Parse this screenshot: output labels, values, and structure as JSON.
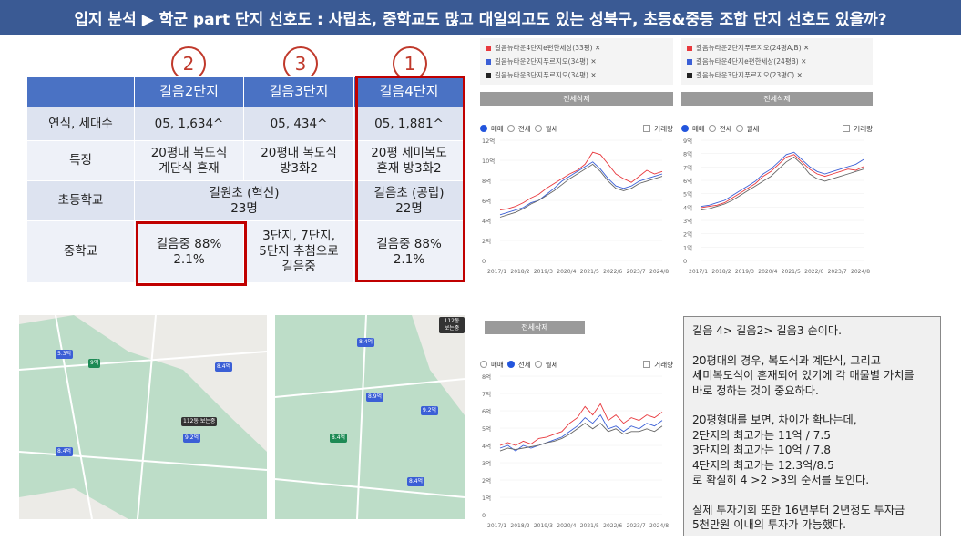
{
  "title": "입지 분석 ▶ 학군 part 단지 선호도 : 사립초, 중학교도 많고 대일외고도 있는 성북구, 초등&중등 조합 단지 선호도 있을까?",
  "markers": [
    "2",
    "3",
    "1"
  ],
  "table": {
    "headers": [
      "",
      "길음2단지",
      "길음3단지",
      "길음4단지"
    ],
    "rows": [
      {
        "label": "연식, 세대수",
        "c1": "05, 1,634^",
        "c2": "05, 434^",
        "c3": "05, 1,881^"
      },
      {
        "label": "특징",
        "c1a": "20평대 복도식",
        "c1b": "계단식 혼재",
        "c2a": "20평대 복도식",
        "c2b": "방3화2",
        "c3a": "20평 세미복도",
        "c3b": "혼재 방3화2"
      },
      {
        "label": "초등학교",
        "c12a": "길원초 (혁신)",
        "c12b": "23명",
        "c3a": "길음초 (공립)",
        "c3b": "22명"
      },
      {
        "label": "중학교",
        "c1a": "길음중 88%",
        "c1b": "2.1%",
        "c2a": "3단지, 7단지,",
        "c2b": "5단지 추첨으로",
        "c2c": "길음중",
        "c3a": "길음중 88%",
        "c3b": "2.1%"
      }
    ]
  },
  "map1": {
    "pins": [
      "5.3억",
      "9억",
      "8.4억",
      "9.2억",
      "8.4억"
    ],
    "label": "112동 보는중"
  },
  "map2": {
    "pins": [
      "8.4억",
      "8.9억",
      "9.2억",
      "8.4억",
      "8.4억"
    ],
    "label": "112동 보는중"
  },
  "chart1": {
    "legend": [
      "길음뉴타운4단지e편한세상(33평) ✕",
      "길음뉴타운2단지푸르지오(34평) ✕",
      "길음뉴타운3단지푸르지오(34평) ✕"
    ],
    "band": "전세삭제",
    "radios": [
      "매매",
      "전세",
      "월세"
    ],
    "checkbox": "거래량",
    "yticks": [
      "12억",
      "10억",
      "8억",
      "6억",
      "4억",
      "2억",
      "0"
    ],
    "xticks": [
      "2017/1",
      "2018/2",
      "2019/3",
      "2020/4",
      "2021/5",
      "2022/6",
      "2023/7",
      "2024/8"
    ]
  },
  "chart2": {
    "legend": [
      "길음뉴타운2단지푸르지오(24평A,B) ✕",
      "길음뉴타운4단지e편한세상(24평B) ✕",
      "길음뉴타운3단지푸르지오(23평C) ✕"
    ],
    "band": "전세삭제",
    "radios": [
      "매매",
      "전세",
      "월세"
    ],
    "checkbox": "거래량",
    "yticks": [
      "9억",
      "8억",
      "7억",
      "6억",
      "5억",
      "4억",
      "3억",
      "2억",
      "1억",
      "0"
    ],
    "xticks": [
      "2017/1",
      "2018/2",
      "2019/3",
      "2020/4",
      "2021/5",
      "2022/6",
      "2023/7",
      "2024/8"
    ]
  },
  "chart3": {
    "band": "전세삭제",
    "radios": [
      "매매",
      "전세",
      "월세"
    ],
    "checkbox": "거래량",
    "yticks": [
      "8억",
      "7억",
      "6억",
      "5억",
      "4억",
      "3억",
      "2억",
      "1억",
      "0"
    ],
    "xticks": [
      "2017/1",
      "2018/2",
      "2019/3",
      "2020/4",
      "2021/5",
      "2022/6",
      "2023/7",
      "2024/8"
    ]
  },
  "note": {
    "l1": "길음 4> 길음2> 길음3 순이다.",
    "l2": "20평대의 경우, 복도식과 계단식, 그리고",
    "l3": "세미복도식이 혼재되어 있기에 각 매물별 가치를",
    "l4": "바로 정하는 것이 중요하다.",
    "l5": "20평형대를 보면, 차이가 확나는데,",
    "l6": "2단지의 최고가는 11억 / 7.5",
    "l7": "3단지의 최고가는 10억 / 7.8",
    "l8": "4단지의 최고가는 12.3억/8.5",
    "l9": "로 확실히 4 >2 >3의 순서를 보인다.",
    "l10": "실제 투자기회 또한 16년부터 2년정도 투자금",
    "l11": "5천만원 이내의 투자가 가능했다."
  },
  "colors": {
    "red": "#e8383d",
    "blue": "#3b5fd6",
    "gray": "#666666",
    "titlebg": "#3a5a94",
    "header": "#4a72c4"
  }
}
